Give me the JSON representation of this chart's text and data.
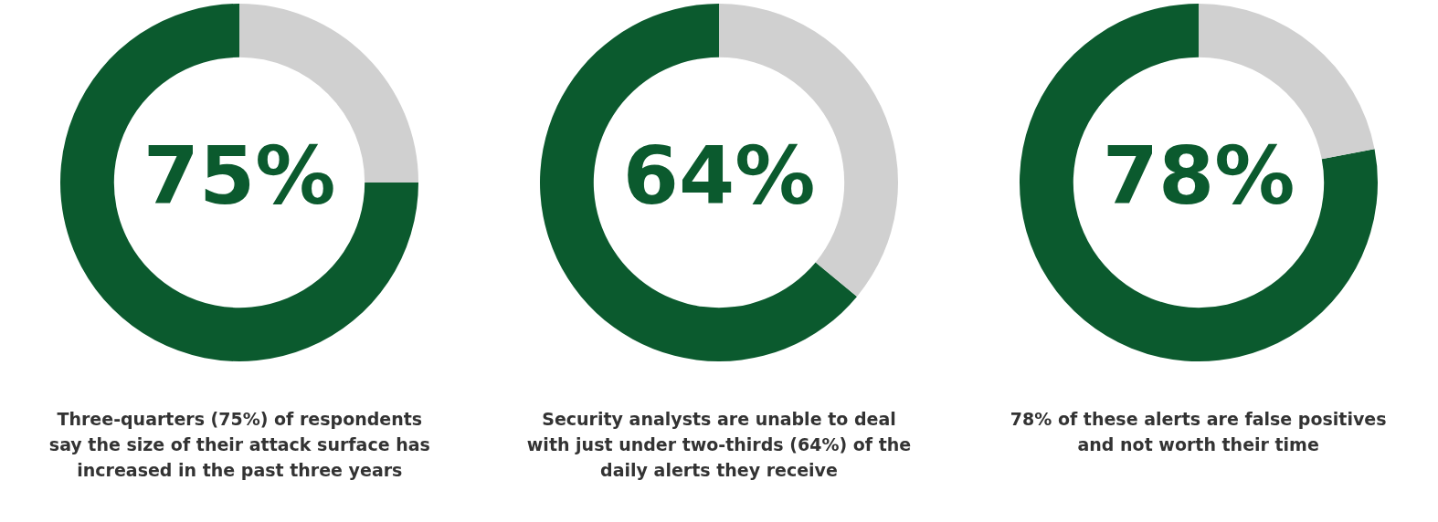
{
  "chart_data": [
    {
      "type": "donut",
      "categories": [
        null,
        null
      ],
      "values": [
        75,
        25
      ],
      "colors": [
        "#0b5a2e",
        "#d0d0d0"
      ],
      "value_labels": [
        "75%",
        null
      ],
      "annotations": [
        "Three-quarters (75%) of respondents say the size of their attack surface has increased in the past three years"
      ],
      "legend": false
    },
    {
      "type": "donut",
      "categories": [
        null,
        null
      ],
      "values": [
        64,
        36
      ],
      "colors": [
        "#0b5a2e",
        "#d0d0d0"
      ],
      "value_labels": [
        "64%",
        null
      ],
      "annotations": [
        "Security analysts are unable to deal with just under two-thirds (64%) of the daily alerts they receive"
      ],
      "legend": false
    },
    {
      "type": "donut",
      "categories": [
        null,
        null
      ],
      "values": [
        78,
        22
      ],
      "colors": [
        "#0b5a2e",
        "#d0d0d0"
      ],
      "value_labels": [
        "78%",
        null
      ],
      "annotations": [
        "78% of these alerts are false positives and not worth their time"
      ],
      "legend": false
    }
  ]
}
